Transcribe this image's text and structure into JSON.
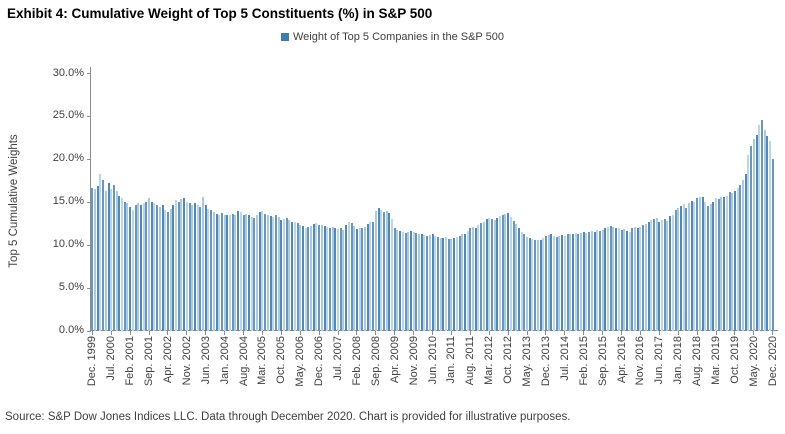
{
  "title": "Exhibit 4: Cumulative Weight of Top 5 Constituents (%) in S&P 500",
  "legend": {
    "label": "Weight of Top 5 Companies in the S&P 500",
    "marker_color": "#3c7eb0"
  },
  "source_note": "Source: S&P Dow Jones Indices LLC. Data through December 2020. Chart is provided for illustrative purposes.",
  "chart_data": {
    "type": "bar",
    "title": "Exhibit 4: Cumulative Weight of Top 5 Constituents (%) in S&P 500",
    "xlabel": "",
    "ylabel": "Top 5 Cumulative Weights",
    "ylim": [
      0,
      30
    ],
    "ytick_step": 5,
    "ytick_labels": [
      "0.0%",
      "5.0%",
      "10.0%",
      "15.0%",
      "20.0%",
      "25.0%",
      "30.0%"
    ],
    "grid": false,
    "legend_entries": [
      "Weight of Top 5 Companies in the S&P 500"
    ],
    "legend_position": "top-center",
    "x_frequency": "monthly",
    "x_start": "Dec. 1999",
    "x_end": "Dec. 2020",
    "xtick_every_n_months": 7,
    "xtick_labels": [
      "Dec. 1999",
      "Jul. 2000",
      "Feb. 2001",
      "Sep. 2001",
      "Apr. 2002",
      "Nov. 2002",
      "Jun. 2003",
      "Jan. 2004",
      "Aug. 2004",
      "Mar. 2005",
      "Oct. 2005",
      "May. 2006",
      "Dec. 2006",
      "Jul. 2007",
      "Feb. 2008",
      "Sep. 2008",
      "Apr. 2009",
      "Nov. 2009",
      "Jun. 2010",
      "Jan. 2011",
      "Aug. 2011",
      "Mar. 2012",
      "Oct. 2012",
      "May. 2013",
      "Dec. 2013",
      "Jul. 2014",
      "Feb. 2015",
      "Sep. 2015",
      "Apr. 2016",
      "Nov. 2016",
      "Jun. 2017",
      "Jan. 2018",
      "Aug. 2018",
      "Mar. 2019",
      "Oct. 2019",
      "May. 2020",
      "Dec. 2020"
    ],
    "values_unit": "percent",
    "values": [
      16.6,
      16.5,
      16.8,
      18.2,
      17.5,
      16.3,
      17.2,
      16.5,
      16.9,
      16.3,
      15.7,
      15.4,
      15.0,
      14.8,
      14.4,
      14.0,
      14.6,
      14.8,
      14.6,
      14.9,
      15.0,
      15.4,
      15.0,
      14.8,
      14.6,
      14.4,
      14.6,
      14.0,
      13.8,
      14.2,
      14.6,
      15.2,
      15.0,
      15.3,
      15.4,
      15.0,
      14.8,
      14.6,
      14.8,
      14.6,
      14.4,
      15.5,
      14.6,
      14.2,
      14.0,
      13.8,
      13.6,
      13.5,
      13.7,
      13.5,
      13.4,
      13.5,
      13.6,
      13.5,
      13.9,
      13.8,
      13.5,
      13.6,
      13.4,
      13.2,
      13.1,
      13.5,
      13.8,
      13.9,
      13.6,
      13.4,
      13.3,
      13.2,
      13.4,
      13.2,
      12.9,
      13.0,
      13.1,
      12.9,
      12.7,
      12.6,
      12.5,
      12.3,
      12.2,
      12.0,
      12.1,
      12.2,
      12.4,
      12.5,
      12.3,
      12.3,
      12.2,
      12.1,
      12.0,
      12.1,
      11.9,
      11.8,
      12.0,
      11.7,
      12.3,
      12.7,
      12.5,
      12.2,
      11.8,
      11.9,
      11.9,
      12.1,
      12.4,
      12.7,
      12.6,
      13.9,
      14.3,
      14.0,
      13.8,
      13.9,
      13.7,
      13.0,
      11.9,
      11.7,
      11.6,
      11.5,
      11.4,
      11.5,
      11.6,
      11.5,
      11.4,
      11.3,
      11.2,
      11.1,
      11.0,
      11.1,
      11.2,
      11.0,
      10.9,
      10.8,
      10.8,
      10.9,
      10.7,
      10.7,
      10.8,
      10.9,
      11.0,
      11.2,
      11.3,
      11.6,
      11.9,
      12.1,
      12.0,
      12.3,
      12.5,
      12.6,
      13.0,
      13.1,
      13.0,
      12.9,
      13.1,
      13.3,
      13.4,
      13.6,
      13.7,
      13.2,
      12.8,
      12.4,
      11.9,
      11.5,
      11.2,
      10.9,
      10.8,
      10.7,
      10.6,
      10.5,
      10.6,
      10.8,
      11.0,
      11.1,
      11.2,
      11.0,
      10.9,
      11.0,
      11.1,
      11.0,
      11.2,
      11.3,
      11.2,
      11.4,
      11.3,
      11.4,
      11.5,
      11.4,
      11.5,
      11.6,
      11.5,
      11.7,
      11.6,
      11.7,
      12.0,
      12.1,
      12.2,
      12.1,
      12.0,
      11.9,
      11.7,
      11.8,
      11.6,
      11.5,
      11.9,
      12.1,
      12.0,
      12.1,
      12.3,
      12.4,
      12.7,
      12.9,
      13.0,
      13.1,
      12.7,
      12.9,
      13.0,
      12.8,
      13.3,
      13.4,
      14.0,
      14.3,
      14.5,
      14.7,
      14.3,
      14.9,
      15.1,
      15.0,
      15.4,
      15.5,
      15.6,
      15.0,
      14.5,
      14.7,
      15.0,
      15.4,
      15.3,
      15.6,
      15.5,
      15.7,
      16.1,
      16.0,
      16.2,
      16.6,
      16.9,
      17.5,
      18.2,
      20.4,
      21.5,
      22.3,
      22.8,
      23.9,
      24.5,
      23.4,
      22.7,
      22.1,
      20.0
    ],
    "bar_color_cycle": [
      "#6797bf",
      "#a9cadf",
      "#5088b6",
      "#bdd5e8"
    ],
    "axis_color": "#8c8c8c",
    "text_color": "#404040"
  }
}
